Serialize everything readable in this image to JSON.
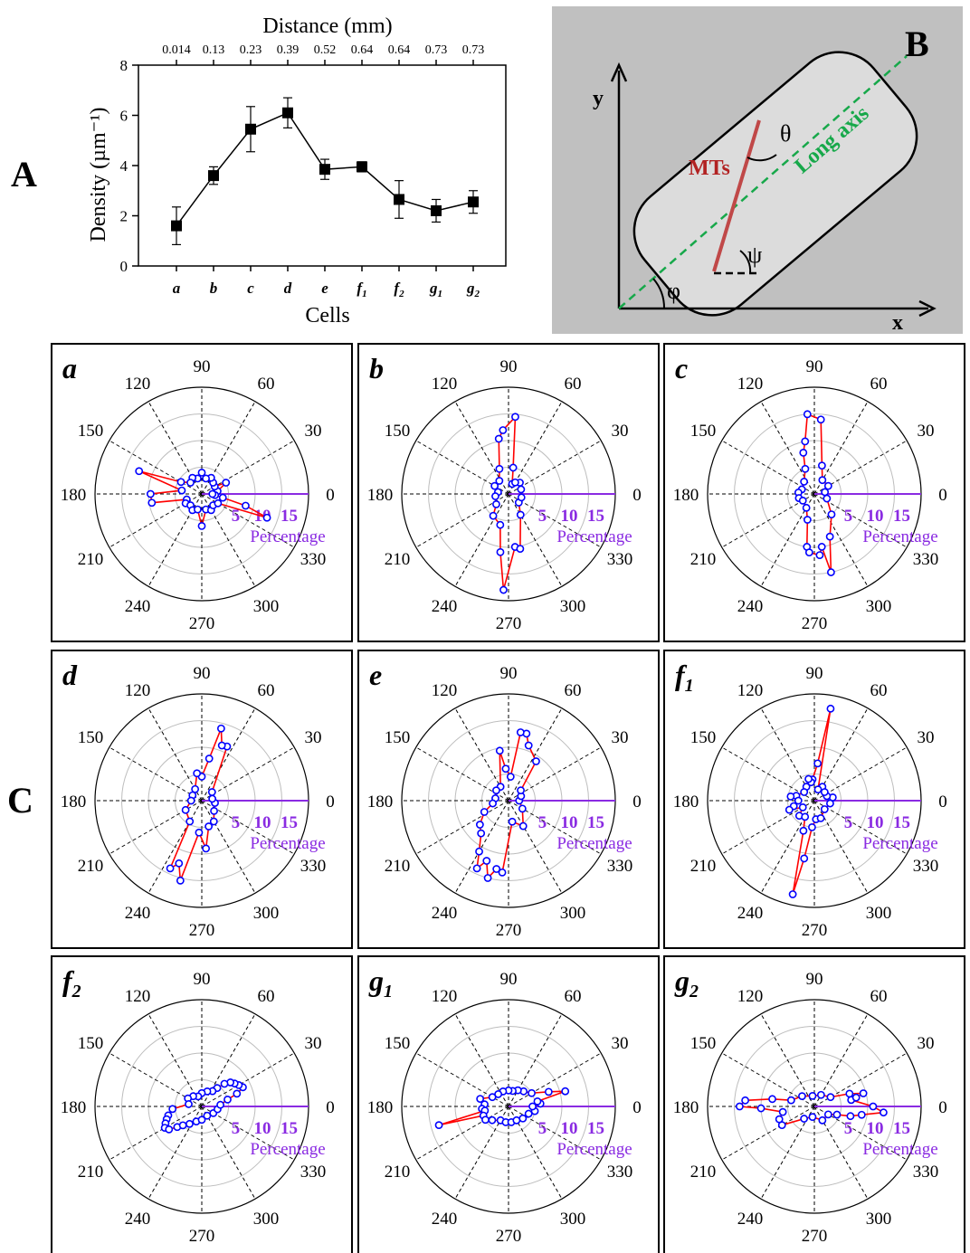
{
  "panel_labels": {
    "A": "A",
    "B": "B",
    "C": "C"
  },
  "colors": {
    "line_chart": "#000000",
    "polar_line": "#ff0000",
    "polar_marker": "#0000ff",
    "polar_axis": "#8a2be2",
    "long_axis": "#17a84a",
    "mts": "#c04848",
    "diagram_bg": "#c0c0c0",
    "cell_fill": "#dcdcdc"
  },
  "chart_data": [
    {
      "type": "line",
      "panel": "A",
      "title": "",
      "xlabel": "Cells",
      "ylabel": "Density (µm⁻¹)",
      "top_axis_label": "Distance (mm)",
      "top_tick_labels": [
        "0.014",
        "0.13",
        "0.23",
        "0.39",
        "0.52",
        "0.64",
        "0.64",
        "0.73",
        "0.73"
      ],
      "categories": [
        "a",
        "b",
        "c",
        "d",
        "e",
        "f1",
        "f2",
        "g1",
        "g2"
      ],
      "category_labels": [
        {
          "base": "a",
          "sub": ""
        },
        {
          "base": "b",
          "sub": ""
        },
        {
          "base": "c",
          "sub": ""
        },
        {
          "base": "d",
          "sub": ""
        },
        {
          "base": "e",
          "sub": ""
        },
        {
          "base": "f",
          "sub": "1"
        },
        {
          "base": "f",
          "sub": "2"
        },
        {
          "base": "g",
          "sub": "1"
        },
        {
          "base": "g",
          "sub": "2"
        }
      ],
      "values": [
        1.6,
        3.6,
        5.45,
        6.1,
        3.85,
        3.95,
        2.65,
        2.2,
        2.55
      ],
      "errors": [
        0.75,
        0.35,
        0.9,
        0.6,
        0.4,
        0.2,
        0.75,
        0.45,
        0.45
      ],
      "ylim": [
        0,
        8
      ],
      "yticks": [
        "0",
        "2",
        "4",
        "6",
        "8"
      ],
      "marker": "square",
      "grid": false
    },
    {
      "type": "polar-rose",
      "panel": "C",
      "angle_ticks": [
        "0",
        "30",
        "60",
        "90",
        "120",
        "150",
        "180",
        "210",
        "240",
        "270",
        "300",
        "330"
      ],
      "radial_ticks": [
        "5",
        "10",
        "15"
      ],
      "radial_axis_label": "Percentage",
      "rmax": 20,
      "subplots": [
        {
          "label": {
            "base": "a",
            "sub": ""
          },
          "points": [
            [
              10,
              3
            ],
            [
              25,
              5
            ],
            [
              30,
              2.8
            ],
            [
              45,
              3
            ],
            [
              60,
              3.5
            ],
            [
              75,
              3
            ],
            [
              90,
              4
            ],
            [
              105,
              3
            ],
            [
              120,
              3.5
            ],
            [
              135,
              3
            ],
            [
              150,
              4.5
            ],
            [
              160,
              12.5
            ],
            [
              170,
              3.8
            ],
            [
              180,
              9.6
            ],
            [
              190,
              9.5
            ],
            [
              200,
              3
            ],
            [
              210,
              3.5
            ],
            [
              225,
              3
            ],
            [
              240,
              3.5
            ],
            [
              255,
              3
            ],
            [
              270,
              6
            ],
            [
              285,
              3
            ],
            [
              300,
              3.5
            ],
            [
              315,
              3
            ],
            [
              330,
              3.5
            ],
            [
              340,
              13
            ],
            [
              345,
              8.5
            ],
            [
              350,
              4
            ],
            [
              355,
              2.5
            ],
            [
              0,
              2
            ]
          ]
        },
        {
          "label": {
            "base": "b",
            "sub": ""
          },
          "points": [
            [
              70,
              2
            ],
            [
              80,
              5
            ],
            [
              85,
              14.5
            ],
            [
              95,
              12
            ],
            [
              100,
              10.5
            ],
            [
              110,
              5
            ],
            [
              125,
              3
            ],
            [
              150,
              3
            ],
            [
              170,
              2
            ],
            [
              190,
              2.5
            ],
            [
              220,
              3
            ],
            [
              235,
              5
            ],
            [
              255,
              6
            ],
            [
              262,
              11
            ],
            [
              267,
              18
            ],
            [
              277,
              10
            ],
            [
              282,
              10.5
            ],
            [
              300,
              4.5
            ],
            [
              320,
              2.5
            ],
            [
              345,
              2.5
            ],
            [
              20,
              2.5
            ],
            [
              45,
              3
            ],
            [
              60,
              2.5
            ]
          ]
        },
        {
          "label": {
            "base": "c",
            "sub": ""
          },
          "points": [
            [
              75,
              5.5
            ],
            [
              85,
              14
            ],
            [
              95,
              15
            ],
            [
              100,
              10
            ],
            [
              105,
              8
            ],
            [
              110,
              5
            ],
            [
              130,
              3
            ],
            [
              160,
              2.5
            ],
            [
              175,
              3
            ],
            [
              195,
              3
            ],
            [
              210,
              2.5
            ],
            [
              240,
              3
            ],
            [
              255,
              5
            ],
            [
              262,
              10
            ],
            [
              265,
              11
            ],
            [
              275,
              11.5
            ],
            [
              278,
              10
            ],
            [
              282,
              15
            ],
            [
              290,
              8.5
            ],
            [
              310,
              5
            ],
            [
              340,
              2.5
            ],
            [
              10,
              2
            ],
            [
              30,
              3
            ],
            [
              60,
              3
            ]
          ]
        },
        {
          "label": {
            "base": "d",
            "sub": ""
          },
          "points": [
            [
              65,
              11.2
            ],
            [
              70,
              11
            ],
            [
              75,
              14
            ],
            [
              80,
              8
            ],
            [
              90,
              4.5
            ],
            [
              100,
              5.2
            ],
            [
              120,
              2.5
            ],
            [
              150,
              2
            ],
            [
              180,
              2
            ],
            [
              210,
              3.5
            ],
            [
              240,
              4.5
            ],
            [
              245,
              14
            ],
            [
              250,
              12.5
            ],
            [
              255,
              15.5
            ],
            [
              265,
              6
            ],
            [
              275,
              9
            ],
            [
              285,
              5
            ],
            [
              300,
              4.5
            ],
            [
              320,
              3
            ],
            [
              350,
              2.5
            ],
            [
              10,
              2
            ],
            [
              40,
              2.5
            ]
          ]
        },
        {
          "label": {
            "base": "e",
            "sub": ""
          },
          "points": [
            [
              55,
              9
            ],
            [
              70,
              11
            ],
            [
              75,
              13
            ],
            [
              80,
              13
            ],
            [
              85,
              4.5
            ],
            [
              95,
              6
            ],
            [
              100,
              9.5
            ],
            [
              120,
              3
            ],
            [
              140,
              3
            ],
            [
              170,
              2.5
            ],
            [
              190,
              3
            ],
            [
              205,
              5
            ],
            [
              220,
              7
            ],
            [
              230,
              8
            ],
            [
              240,
              11
            ],
            [
              245,
              14
            ],
            [
              250,
              12
            ],
            [
              255,
              15
            ],
            [
              260,
              13
            ],
            [
              265,
              13.5
            ],
            [
              280,
              4
            ],
            [
              300,
              5.5
            ],
            [
              330,
              3
            ],
            [
              0,
              2
            ],
            [
              20,
              2.5
            ],
            [
              40,
              3
            ]
          ]
        },
        {
          "label": {
            "base": "f",
            "sub": "1"
          },
          "points": [
            [
              60,
              3
            ],
            [
              72,
              2.2
            ],
            [
              80,
              17.5
            ],
            [
              85,
              7
            ],
            [
              95,
              4
            ],
            [
              100,
              3.5
            ],
            [
              105,
              4.2
            ],
            [
              120,
              3
            ],
            [
              140,
              2.5
            ],
            [
              165,
              3.5
            ],
            [
              170,
              4.5
            ],
            [
              180,
              3
            ],
            [
              195,
              4
            ],
            [
              200,
              5
            ],
            [
              210,
              2.5
            ],
            [
              225,
              4
            ],
            [
              240,
              3.5
            ],
            [
              250,
              6
            ],
            [
              257,
              18
            ],
            [
              260,
              11
            ],
            [
              265,
              5
            ],
            [
              275,
              3.5
            ],
            [
              290,
              3.5
            ],
            [
              320,
              2.5
            ],
            [
              350,
              3
            ],
            [
              10,
              3.5
            ],
            [
              20,
              2.5
            ],
            [
              40,
              2.5
            ]
          ]
        },
        {
          "label": {
            "base": "f",
            "sub": "2"
          },
          "points": [
            [
              20,
              7
            ],
            [
              25,
              8.5
            ],
            [
              30,
              8
            ],
            [
              35,
              7.5
            ],
            [
              40,
              7
            ],
            [
              45,
              6
            ],
            [
              50,
              4.5
            ],
            [
              55,
              3.5
            ],
            [
              70,
              3
            ],
            [
              90,
              2.5
            ],
            [
              110,
              2
            ],
            [
              130,
              2.5
            ],
            [
              150,
              3
            ],
            [
              170,
              2.5
            ],
            [
              185,
              5.5
            ],
            [
              195,
              6.5
            ],
            [
              200,
              7
            ],
            [
              205,
              7.5
            ],
            [
              210,
              8
            ],
            [
              215,
              7.5
            ],
            [
              220,
              6
            ],
            [
              225,
              5
            ],
            [
              235,
              4
            ],
            [
              250,
              3
            ],
            [
              270,
              2.5
            ],
            [
              300,
              2
            ],
            [
              330,
              2.5
            ],
            [
              350,
              3
            ],
            [
              5,
              3.5
            ],
            [
              15,
              5
            ]
          ]
        },
        {
          "label": {
            "base": "g",
            "sub": "1"
          },
          "points": [
            [
              15,
              11
            ],
            [
              20,
              8
            ],
            [
              30,
              5
            ],
            [
              45,
              4
            ],
            [
              60,
              3.5
            ],
            [
              75,
              3
            ],
            [
              90,
              3
            ],
            [
              110,
              3
            ],
            [
              130,
              3
            ],
            [
              150,
              3.5
            ],
            [
              165,
              5.5
            ],
            [
              175,
              4.5
            ],
            [
              185,
              5
            ],
            [
              190,
              4.5
            ],
            [
              195,
              13.5
            ],
            [
              200,
              5
            ],
            [
              210,
              5
            ],
            [
              220,
              4
            ],
            [
              240,
              3
            ],
            [
              260,
              3
            ],
            [
              280,
              3
            ],
            [
              300,
              3
            ],
            [
              320,
              3.5
            ],
            [
              340,
              4
            ],
            [
              350,
              5
            ],
            [
              0,
              4.5
            ],
            [
              5,
              6
            ],
            [
              10,
              5.5
            ]
          ]
        },
        {
          "label": {
            "base": "g",
            "sub": "2"
          },
          "points": [
            [
              10,
              7
            ],
            [
              12,
              8
            ],
            [
              15,
              9.5
            ],
            [
              20,
              7
            ],
            [
              30,
              3.5
            ],
            [
              60,
              2.5
            ],
            [
              100,
              2
            ],
            [
              140,
              3
            ],
            [
              165,
              4.5
            ],
            [
              170,
              8
            ],
            [
              175,
              13
            ],
            [
              180,
              14
            ],
            [
              182,
              10
            ],
            [
              190,
              6
            ],
            [
              200,
              7
            ],
            [
              210,
              7
            ],
            [
              230,
              3
            ],
            [
              260,
              2
            ],
            [
              300,
              3
            ],
            [
              330,
              3
            ],
            [
              340,
              4.5
            ],
            [
              345,
              7
            ],
            [
              350,
              9
            ],
            [
              355,
              13
            ],
            [
              0,
              11
            ]
          ]
        }
      ]
    }
  ],
  "diagram": {
    "axis_x": "x",
    "axis_y": "y",
    "mts_label": "MTs",
    "long_axis_label": "Long axis",
    "theta": "θ",
    "psi": "ψ",
    "phi": "φ"
  }
}
